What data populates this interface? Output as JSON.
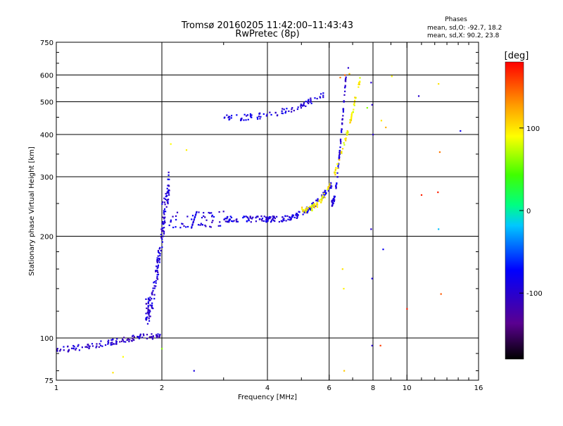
{
  "chart_data": {
    "type": "scatter",
    "title": "Tromsø 20160205 11:42:00–11:43:43",
    "subtitle": "RwPretec (8p)",
    "xlabel": "Frequency [MHz]",
    "ylabel": "Stationary phase Virtual Height [km]",
    "x_scale": "log",
    "y_scale": "log",
    "xlim": [
      1,
      16
    ],
    "ylim": [
      75,
      750
    ],
    "x_ticks": [
      1,
      2,
      4,
      6,
      8,
      10,
      16
    ],
    "x_tick_labels": [
      "1",
      "2",
      "4",
      "6",
      "8",
      "10",
      "16"
    ],
    "y_ticks": [
      75,
      100,
      200,
      300,
      400,
      500,
      600,
      750
    ],
    "y_tick_labels": [
      "75",
      "100",
      "200",
      "300",
      "400",
      "500",
      "600",
      "750"
    ],
    "grid": true,
    "legend": {
      "title": "Phases",
      "line1": "mean, sd,O: -92.7, 18.2",
      "line2": "mean, sd,X:  90.2, 23.8"
    },
    "colorbar": {
      "label": "[deg]",
      "range": [
        -180,
        180
      ],
      "ticks": [
        100,
        0,
        -100
      ],
      "tick_labels": [
        "100",
        "0",
        "-100"
      ]
    },
    "traces": [
      {
        "name": "O-mode E/Es",
        "x_range": [
          1.0,
          1.98
        ],
        "y_func": "e",
        "n": 120,
        "phase": -100
      },
      {
        "name": "O-mode F-low rise",
        "x_range": [
          1.8,
          2.1
        ],
        "y_func": "frise",
        "n": 160,
        "phase": -95
      },
      {
        "name": "O-mode F1 trace",
        "x_range": [
          2.0,
          6.1
        ],
        "y_func": "f1",
        "n": 260,
        "phase": -92
      },
      {
        "name": "O-mode F2 trace",
        "x_range": [
          3.0,
          5.8
        ],
        "y_func": "f2",
        "n": 90,
        "phase": -90
      },
      {
        "name": "O-mode cusp",
        "x_range": [
          6.1,
          6.7
        ],
        "y_func": "cusp",
        "n": 90,
        "phase": -95
      },
      {
        "name": "X-mode trace",
        "x_range": [
          5.0,
          7.4
        ],
        "y_func": "x",
        "n": 110,
        "phase": 95
      }
    ],
    "points": [
      [
        2.47,
        80,
        -90
      ],
      [
        2.12,
        375,
        90
      ],
      [
        2.35,
        360,
        95
      ],
      [
        6.62,
        80,
        110
      ],
      [
        6.55,
        160,
        100
      ],
      [
        6.6,
        140,
        95
      ],
      [
        7.95,
        95,
        -100
      ],
      [
        8.4,
        95,
        160
      ],
      [
        8.55,
        183,
        -80
      ],
      [
        8.7,
        420,
        120
      ],
      [
        8.45,
        440,
        100
      ],
      [
        9.05,
        595,
        95
      ],
      [
        10.8,
        520,
        -100
      ],
      [
        12.3,
        565,
        100
      ],
      [
        12.4,
        355,
        140
      ],
      [
        12.25,
        270,
        170
      ],
      [
        11.0,
        265,
        170
      ],
      [
        12.3,
        210,
        -20
      ],
      [
        14.2,
        410,
        -80
      ],
      [
        12.5,
        135,
        150
      ],
      [
        10.0,
        122,
        170
      ],
      [
        7.1,
        515,
        110
      ],
      [
        7.95,
        490,
        -100
      ],
      [
        7.9,
        570,
        -100
      ],
      [
        8.0,
        400,
        -100
      ],
      [
        7.9,
        210,
        -100
      ],
      [
        7.95,
        150,
        -90
      ],
      [
        7.7,
        480,
        60
      ],
      [
        1.45,
        79,
        100
      ],
      [
        1.55,
        88,
        90
      ],
      [
        2.0,
        93,
        60
      ],
      [
        6.65,
        600,
        150
      ],
      [
        6.45,
        590,
        140
      ],
      [
        6.8,
        630,
        -100
      ],
      [
        6.85,
        605,
        110
      ]
    ]
  }
}
